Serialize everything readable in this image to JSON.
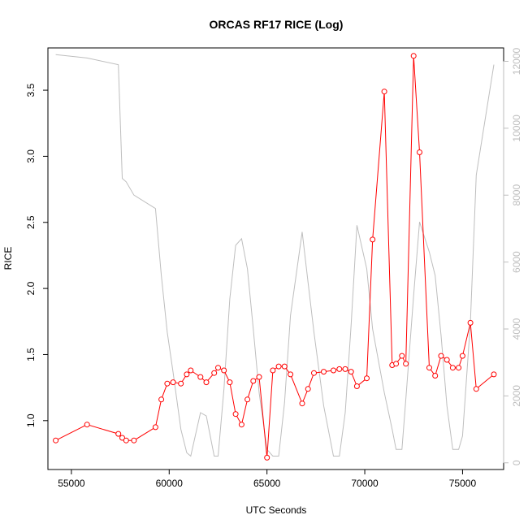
{
  "chart_data": {
    "type": "line",
    "title": "ORCAS RF17 RICE (Log)",
    "xlabel": "UTC Seconds",
    "ylabel": "RICE",
    "xlim": [
      53800,
      77100
    ],
    "ylim": [
      0.63,
      3.82
    ],
    "y2lim": [
      -200,
      12400
    ],
    "x_ticks": [
      55000,
      60000,
      65000,
      70000,
      75000
    ],
    "y_ticks": [
      1.0,
      1.5,
      2.0,
      2.5,
      3.0,
      3.5
    ],
    "y2_ticks": [
      0,
      2000,
      4000,
      6000,
      8000,
      10000,
      12000
    ],
    "grid": false,
    "colors": {
      "primary": "#ff0000",
      "secondary": "#bebebe",
      "axis": "#000000"
    },
    "series": [
      {
        "axis": "left",
        "style": "line+points",
        "color": "#ff0000",
        "x": [
          54200,
          55800,
          57400,
          57600,
          57800,
          58200,
          59300,
          59600,
          59900,
          60200,
          60600,
          60900,
          61100,
          61600,
          61900,
          62300,
          62500,
          62800,
          63100,
          63400,
          63700,
          64000,
          64300,
          64600,
          65000,
          65300,
          65600,
          65900,
          66200,
          66800,
          67100,
          67400,
          67900,
          68400,
          68700,
          69000,
          69300,
          69600,
          70100,
          70400,
          71000,
          71400,
          71600,
          71900,
          72100,
          72500,
          72800,
          73300,
          73600,
          73900,
          74200,
          74500,
          74800,
          75000,
          75400,
          75700,
          76600
        ],
        "y": [
          0.85,
          0.97,
          0.9,
          0.87,
          0.85,
          0.85,
          0.95,
          1.16,
          1.28,
          1.29,
          1.28,
          1.35,
          1.38,
          1.33,
          1.29,
          1.36,
          1.4,
          1.38,
          1.29,
          1.05,
          0.97,
          1.16,
          1.3,
          1.33,
          0.72,
          1.38,
          1.41,
          1.41,
          1.35,
          1.13,
          1.24,
          1.36,
          1.37,
          1.38,
          1.39,
          1.39,
          1.37,
          1.26,
          1.32,
          2.37,
          3.49,
          1.42,
          1.43,
          1.49,
          1.43,
          3.76,
          3.03,
          1.4,
          1.34,
          1.49,
          1.46,
          1.4,
          1.4,
          1.49,
          1.74,
          1.24,
          1.35
        ]
      },
      {
        "axis": "right",
        "style": "line",
        "color": "#bebebe",
        "x": [
          54200,
          55800,
          57400,
          57600,
          57800,
          58200,
          59300,
          59600,
          59900,
          60200,
          60600,
          60900,
          61100,
          61600,
          61900,
          62300,
          62500,
          62800,
          63100,
          63400,
          63700,
          64000,
          64300,
          64600,
          65000,
          65300,
          65600,
          65900,
          66200,
          66800,
          67100,
          67400,
          67900,
          68400,
          68700,
          69000,
          69300,
          69600,
          70100,
          70400,
          71000,
          71400,
          71600,
          71900,
          72100,
          72500,
          72800,
          73300,
          73600,
          73900,
          74200,
          74500,
          74800,
          75000,
          75400,
          75700,
          76600
        ],
        "y": [
          12200,
          12100,
          11900,
          8500,
          8400,
          8000,
          7600,
          5600,
          3900,
          2700,
          1000,
          300,
          200,
          1500,
          1400,
          200,
          200,
          2200,
          4900,
          6500,
          6700,
          5800,
          4000,
          2100,
          400,
          200,
          200,
          1800,
          4400,
          6900,
          5400,
          3900,
          1700,
          200,
          200,
          1500,
          4100,
          7100,
          5800,
          4000,
          2100,
          1000,
          400,
          400,
          1900,
          5000,
          7200,
          6300,
          5600,
          3800,
          1700,
          400,
          400,
          800,
          4200,
          8600,
          11900
        ]
      }
    ]
  }
}
